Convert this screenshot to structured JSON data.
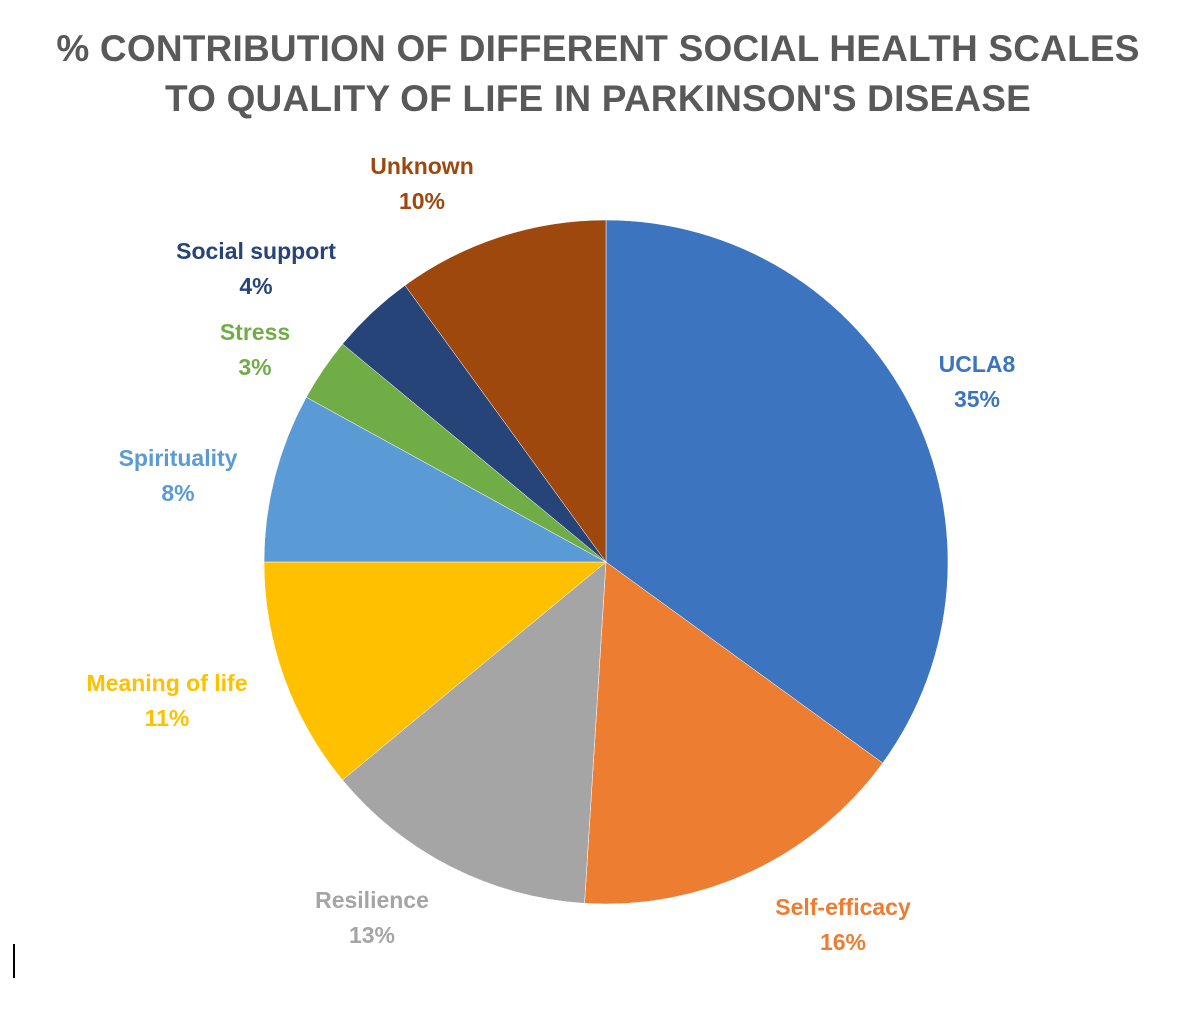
{
  "chart_data": {
    "type": "pie",
    "title_lines": [
      "% CONTRIBUTION OF DIFFERENT SOCIAL HEALTH SCALES",
      "TO QUALITY OF LIFE IN PARKINSON'S DISEASE"
    ],
    "slices": [
      {
        "name": "UCLA8",
        "value": 35,
        "label": "35%",
        "color": "#3C74BF"
      },
      {
        "name": "Self-efficacy",
        "value": 16,
        "label": "16%",
        "color": "#ED7D31"
      },
      {
        "name": "Resilience",
        "value": 13,
        "label": "13%",
        "color": "#A5A5A5"
      },
      {
        "name": "Meaning of life",
        "value": 11,
        "label": "11%",
        "color": "#FFC000"
      },
      {
        "name": "Spirituality",
        "value": 8,
        "label": "8%",
        "color": "#5B9BD5"
      },
      {
        "name": "Stress",
        "value": 3,
        "label": "3%",
        "color": "#70AD47"
      },
      {
        "name": "Social support",
        "value": 4,
        "label": "4%",
        "color": "#264478"
      },
      {
        "name": "Unknown",
        "value": 10,
        "label": "10%",
        "color": "#9E480E"
      }
    ],
    "start_angle": "12 o'clock",
    "direction": "clockwise",
    "legend": "none (data labels outside slices)"
  }
}
